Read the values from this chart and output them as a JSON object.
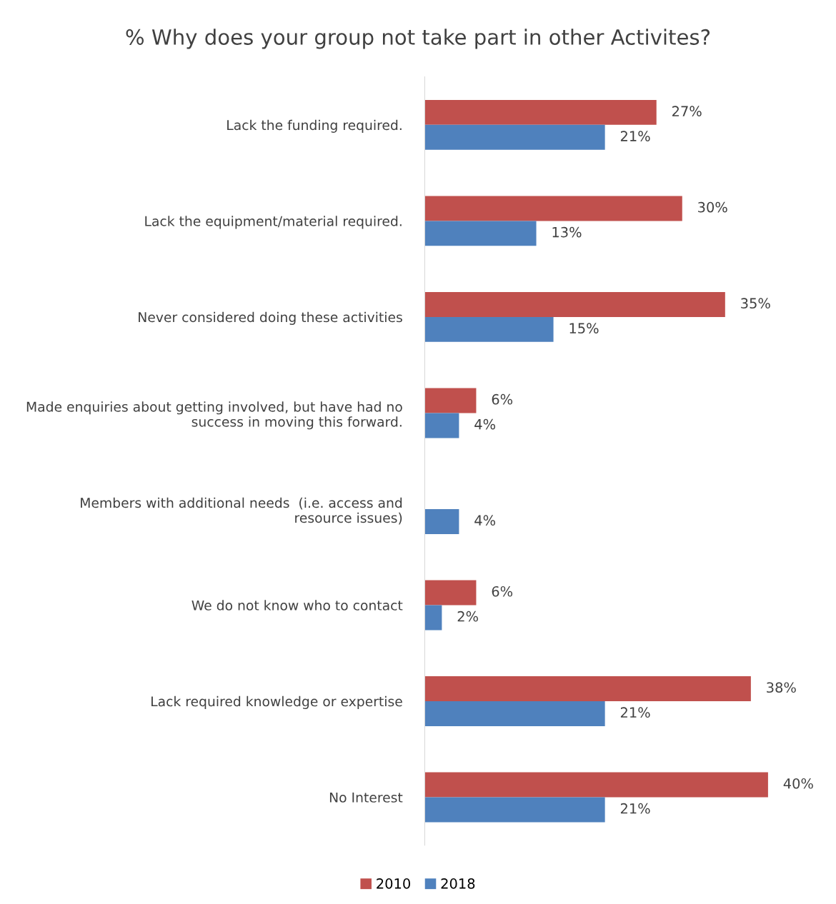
{
  "chart_data": {
    "type": "bar",
    "orientation": "horizontal",
    "title": "% Why does your group not take part in other Activites?",
    "categories": [
      "Lack the funding required.",
      "Lack the equipment/material required.",
      "Never considered doing these activities",
      "Made enquiries about getting involved, but have had no\nsuccess in moving this forward.",
      "Members with additional needs  (i.e. access and\nresource issues)",
      "We do not know who to contact",
      "Lack required knowledge or expertise",
      "No Interest"
    ],
    "series": [
      {
        "name": "2010",
        "color": "#c0504d",
        "values": [
          27,
          30,
          35,
          6,
          null,
          6,
          38,
          40
        ],
        "value_labels": [
          "27%",
          "30%",
          "35%",
          "6%",
          null,
          "6%",
          "38%",
          "40%"
        ]
      },
      {
        "name": "2018",
        "color": "#4f81bd",
        "values": [
          21,
          13,
          15,
          4,
          4,
          2,
          21,
          21
        ],
        "value_labels": [
          "21%",
          "13%",
          "15%",
          "4%",
          "4%",
          "2%",
          "21%",
          "21%"
        ]
      }
    ],
    "legend": "bottom"
  }
}
